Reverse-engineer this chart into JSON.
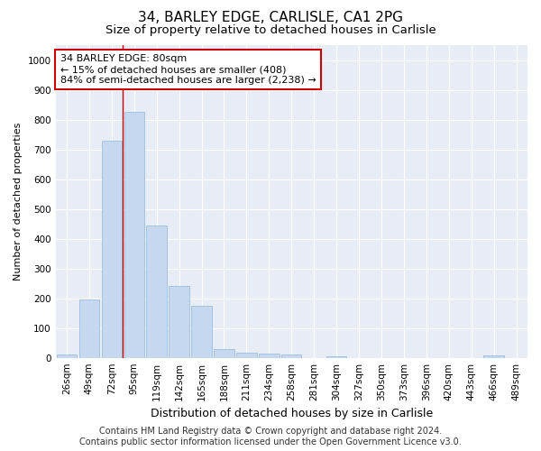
{
  "title1": "34, BARLEY EDGE, CARLISLE, CA1 2PG",
  "title2": "Size of property relative to detached houses in Carlisle",
  "xlabel": "Distribution of detached houses by size in Carlisle",
  "ylabel": "Number of detached properties",
  "categories": [
    "26sqm",
    "49sqm",
    "72sqm",
    "95sqm",
    "119sqm",
    "142sqm",
    "165sqm",
    "188sqm",
    "211sqm",
    "234sqm",
    "258sqm",
    "281sqm",
    "304sqm",
    "327sqm",
    "350sqm",
    "373sqm",
    "396sqm",
    "420sqm",
    "443sqm",
    "466sqm",
    "489sqm"
  ],
  "values": [
    10,
    195,
    730,
    825,
    445,
    240,
    175,
    30,
    18,
    15,
    10,
    0,
    5,
    0,
    0,
    0,
    0,
    0,
    0,
    8,
    0
  ],
  "bar_color": "#c5d8f0",
  "bar_edge_color": "#8fb8d8",
  "vline_color": "#cc0000",
  "annotation_text": "34 BARLEY EDGE: 80sqm\n← 15% of detached houses are smaller (408)\n84% of semi-detached houses are larger (2,238) →",
  "annotation_box_facecolor": "#ffffff",
  "annotation_box_edgecolor": "#cc0000",
  "ylim": [
    0,
    1050
  ],
  "yticks": [
    0,
    100,
    200,
    300,
    400,
    500,
    600,
    700,
    800,
    900,
    1000
  ],
  "footer1": "Contains HM Land Registry data © Crown copyright and database right 2024.",
  "footer2": "Contains public sector information licensed under the Open Government Licence v3.0.",
  "plot_bg_color": "#e8edf5",
  "grid_color": "#ffffff",
  "title1_fontsize": 11,
  "title2_fontsize": 9.5,
  "xlabel_fontsize": 9,
  "ylabel_fontsize": 8,
  "tick_fontsize": 7.5,
  "annotation_fontsize": 8,
  "footer_fontsize": 7
}
